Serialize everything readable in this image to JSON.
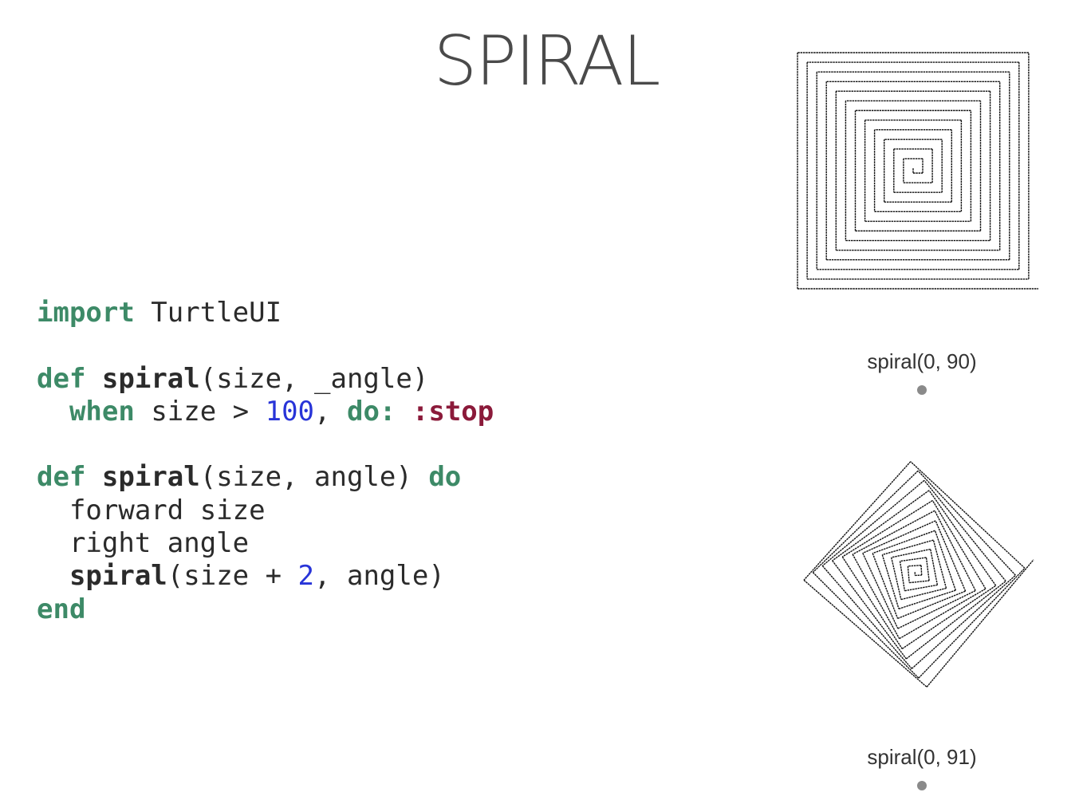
{
  "title": "SPIRAL",
  "code": {
    "lines": [
      [
        {
          "t": "import",
          "c": "kw"
        },
        {
          "t": " TurtleUI",
          "c": "plain"
        }
      ],
      [],
      [
        {
          "t": "def",
          "c": "kw"
        },
        {
          "t": " ",
          "c": "plain"
        },
        {
          "t": "spiral",
          "c": "fn"
        },
        {
          "t": "(size, _angle)",
          "c": "plain"
        }
      ],
      [
        {
          "t": "  ",
          "c": "plain"
        },
        {
          "t": "when",
          "c": "kw"
        },
        {
          "t": " size > ",
          "c": "plain"
        },
        {
          "t": "100",
          "c": "num"
        },
        {
          "t": ", ",
          "c": "plain"
        },
        {
          "t": "do:",
          "c": "kw"
        },
        {
          "t": " ",
          "c": "plain"
        },
        {
          "t": ":stop",
          "c": "atom"
        }
      ],
      [],
      [
        {
          "t": "def",
          "c": "kw"
        },
        {
          "t": " ",
          "c": "plain"
        },
        {
          "t": "spiral",
          "c": "fn"
        },
        {
          "t": "(size, angle) ",
          "c": "plain"
        },
        {
          "t": "do",
          "c": "kw"
        }
      ],
      [
        {
          "t": "  forward size",
          "c": "plain"
        }
      ],
      [
        {
          "t": "  right angle",
          "c": "plain"
        }
      ],
      [
        {
          "t": "  ",
          "c": "plain"
        },
        {
          "t": "spiral",
          "c": "fn"
        },
        {
          "t": "(size + ",
          "c": "plain"
        },
        {
          "t": "2",
          "c": "num"
        },
        {
          "t": ", angle)",
          "c": "plain"
        }
      ],
      [
        {
          "t": "end",
          "c": "kw"
        }
      ]
    ]
  },
  "examples": [
    {
      "caption": "spiral(0, 90)",
      "angle": 90
    },
    {
      "caption": "spiral(0, 91)",
      "angle": 91
    }
  ],
  "colors": {
    "keyword": "#3d8a67",
    "number": "#2834d8",
    "atom": "#8b1a3a",
    "text": "#2b2b2b",
    "title": "#4a4a4a"
  }
}
